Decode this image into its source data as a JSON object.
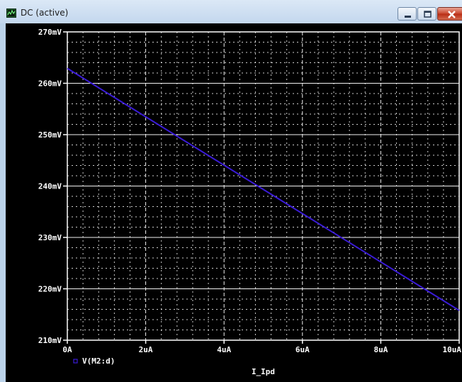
{
  "window": {
    "title": "DC (active)",
    "icon": "waveform-icon",
    "controls": [
      "minimize-icon",
      "maximize-icon",
      "close-icon"
    ]
  },
  "colors": {
    "plot_bg": "#000000",
    "grid": "#ffffff",
    "trace": "#3a1bd6",
    "legend_marker": "#3a1bd6",
    "titlebar_top": "#dbe8f6",
    "titlebar_bottom": "#c3d7ee",
    "close_button": "#c8442b"
  },
  "chart_data": {
    "type": "line",
    "title": "",
    "xlabel": "I_Ipd",
    "ylabel": "",
    "xlim": [
      0,
      10
    ],
    "ylim": [
      210,
      270
    ],
    "x_ticks": [
      0,
      2,
      4,
      6,
      8,
      10
    ],
    "x_tick_labels": [
      "0A",
      "2uA",
      "4uA",
      "6uA",
      "8uA",
      "10uA"
    ],
    "y_ticks": [
      210,
      220,
      230,
      240,
      250,
      260,
      270
    ],
    "y_tick_labels": [
      "210mV",
      "220mV",
      "230mV",
      "240mV",
      "250mV",
      "260mV",
      "270mV"
    ],
    "grid": "dashed",
    "legend": "bottom-left",
    "series": [
      {
        "name": "V(M2:d)",
        "x": [
          0,
          10
        ],
        "y": [
          262.9,
          215.8
        ]
      }
    ]
  }
}
